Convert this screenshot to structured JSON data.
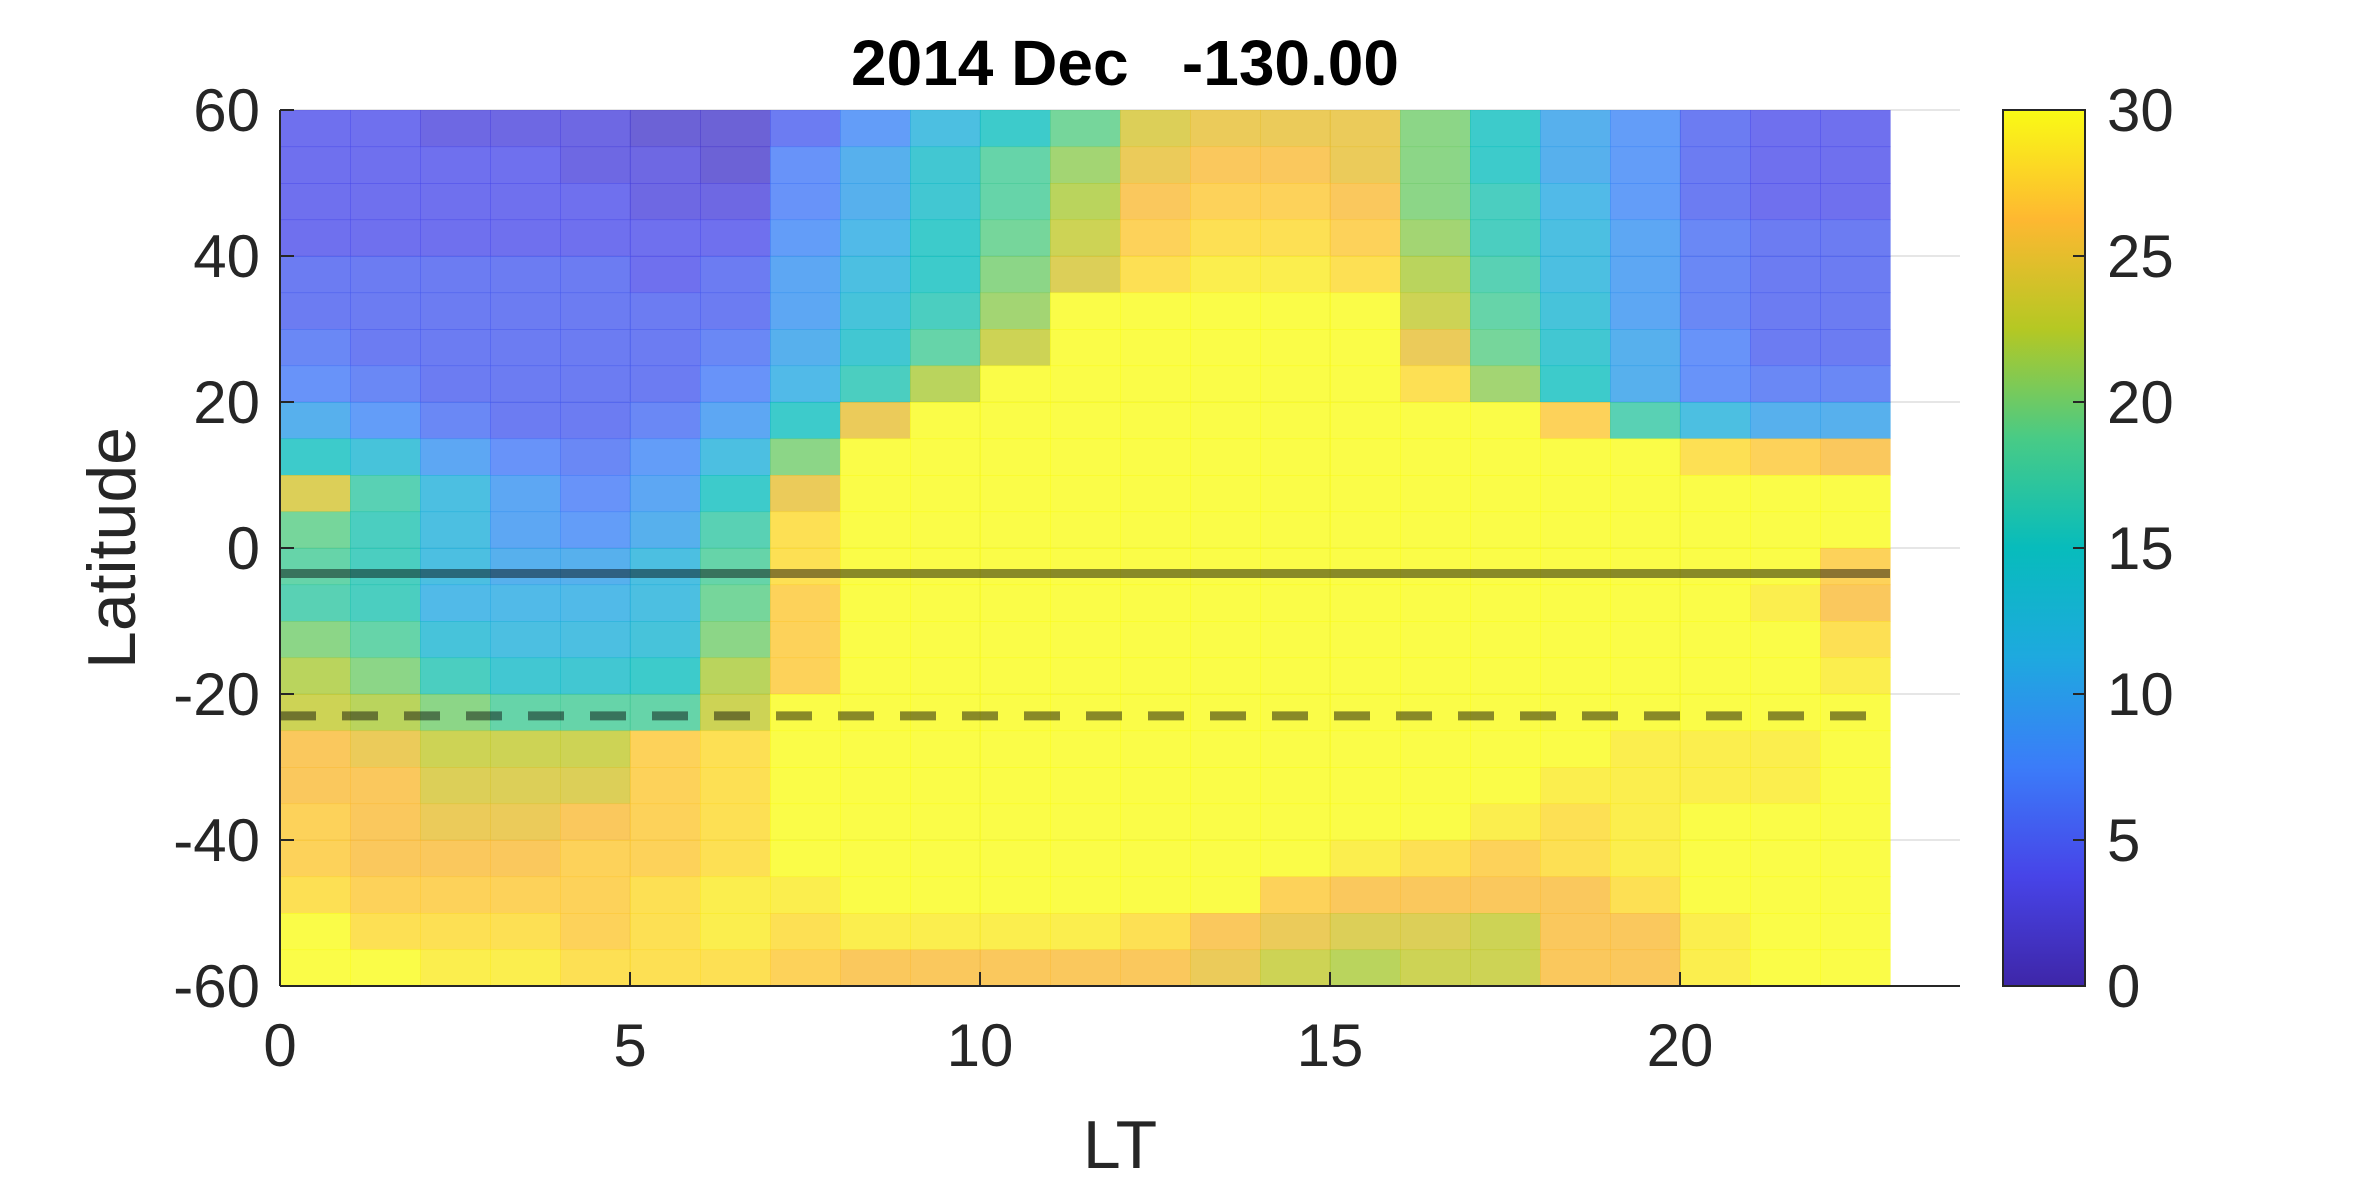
{
  "chart_data": {
    "type": "heatmap",
    "title": "2014 Dec   -130.00",
    "xlabel": "LT",
    "ylabel": "Latitude",
    "xlim": [
      0,
      24
    ],
    "ylim": [
      -60,
      60
    ],
    "x_ticks": [
      0,
      5,
      10,
      15,
      20
    ],
    "x_tick_labels": [
      "0",
      "5",
      "10",
      "15",
      "20"
    ],
    "y_ticks": [
      -60,
      -40,
      -20,
      0,
      20,
      40,
      60
    ],
    "y_tick_labels": [
      "-60",
      "-40",
      "-20",
      "0",
      "20",
      "40",
      "60"
    ],
    "grid": true,
    "colormap": "parula",
    "clim": [
      0,
      30
    ],
    "colorbar_ticks": [
      0,
      5,
      10,
      15,
      20,
      25,
      30
    ],
    "colorbar_tick_labels": [
      "0",
      "5",
      "10",
      "15",
      "20",
      "25",
      "30"
    ],
    "x_bin_width": 1,
    "y_bin_height": 5,
    "y_bins_top_edge": 60,
    "row_centers": [
      57.5,
      52.5,
      47.5,
      42.5,
      37.5,
      32.5,
      27.5,
      22.5,
      17.5,
      12.5,
      7.5,
      2.5,
      -2.5,
      -7.5,
      -12.5,
      -17.5,
      -22.5,
      -27.5,
      -32.5,
      -37.5,
      -42.5,
      -47.5,
      -52.5,
      -57.5
    ],
    "col_centers": [
      0.5,
      1.5,
      2.5,
      3.5,
      4.5,
      5.5,
      6.5,
      7.5,
      8.5,
      9.5,
      10.5,
      11.5,
      12.5,
      13.5,
      14.5,
      15.5,
      16.5,
      17.5,
      18.5,
      19.5,
      20.5,
      21.5,
      22.5
    ],
    "values": [
      [
        4,
        4,
        3,
        3,
        3,
        2,
        2,
        5,
        8,
        12,
        15,
        19,
        24,
        25,
        25,
        25,
        20,
        15,
        10,
        8,
        5,
        4,
        4
      ],
      [
        4,
        4,
        4,
        4,
        3,
        3,
        2,
        7,
        10,
        14,
        18,
        21,
        25,
        26,
        26,
        25,
        20,
        15,
        10,
        8,
        5,
        4,
        4
      ],
      [
        4,
        4,
        4,
        4,
        4,
        3,
        3,
        7,
        10,
        14,
        18,
        22,
        26,
        27,
        27,
        26,
        20,
        16,
        11,
        8,
        5,
        4,
        4
      ],
      [
        4,
        4,
        4,
        4,
        4,
        4,
        4,
        8,
        11,
        15,
        19,
        23,
        27,
        28,
        28,
        27,
        21,
        16,
        12,
        9,
        6,
        5,
        5
      ],
      [
        5,
        5,
        5,
        5,
        5,
        4,
        5,
        9,
        12,
        15,
        20,
        24,
        28,
        29,
        29,
        28,
        22,
        17,
        12,
        9,
        6,
        5,
        5
      ],
      [
        5,
        5,
        5,
        5,
        5,
        5,
        5,
        9,
        13,
        16,
        21,
        30,
        30,
        30,
        30,
        30,
        23,
        18,
        13,
        9,
        6,
        5,
        5
      ],
      [
        6,
        5,
        5,
        5,
        5,
        5,
        6,
        10,
        14,
        18,
        23,
        30,
        30,
        30,
        30,
        30,
        25,
        19,
        14,
        10,
        7,
        5,
        5
      ],
      [
        7,
        6,
        5,
        5,
        5,
        5,
        7,
        11,
        16,
        22,
        30,
        30,
        30,
        30,
        30,
        30,
        28,
        21,
        15,
        10,
        7,
        6,
        6
      ],
      [
        10,
        8,
        6,
        5,
        5,
        6,
        9,
        15,
        25,
        30,
        30,
        30,
        30,
        30,
        30,
        30,
        30,
        30,
        27,
        17,
        12,
        10,
        10
      ],
      [
        15,
        13,
        9,
        7,
        6,
        8,
        12,
        20,
        30,
        30,
        30,
        30,
        30,
        30,
        30,
        30,
        30,
        30,
        30,
        30,
        28,
        27,
        26
      ],
      [
        24,
        17,
        12,
        9,
        7,
        9,
        15,
        25,
        30,
        30,
        30,
        30,
        30,
        30,
        30,
        30,
        30,
        30,
        30,
        30,
        30,
        30,
        30
      ],
      [
        19,
        16,
        12,
        9,
        8,
        10,
        17,
        28,
        30,
        30,
        30,
        30,
        30,
        30,
        30,
        30,
        30,
        30,
        30,
        30,
        30,
        30,
        30
      ],
      [
        18,
        16,
        12,
        10,
        10,
        12,
        18,
        28,
        30,
        30,
        30,
        30,
        30,
        30,
        30,
        30,
        30,
        30,
        30,
        30,
        30,
        30,
        27
      ],
      [
        17,
        16,
        11,
        11,
        11,
        12,
        19,
        27,
        30,
        30,
        30,
        30,
        30,
        30,
        30,
        30,
        30,
        30,
        30,
        30,
        30,
        29,
        26
      ],
      [
        20,
        18,
        13,
        12,
        12,
        13,
        20,
        27,
        30,
        30,
        30,
        30,
        30,
        30,
        30,
        30,
        30,
        30,
        30,
        30,
        30,
        30,
        28
      ],
      [
        22,
        20,
        16,
        14,
        14,
        15,
        22,
        27,
        30,
        30,
        30,
        30,
        30,
        30,
        30,
        30,
        30,
        30,
        30,
        30,
        30,
        30,
        29
      ],
      [
        23,
        22,
        20,
        18,
        18,
        18,
        23,
        30,
        30,
        30,
        30,
        30,
        30,
        30,
        30,
        30,
        30,
        30,
        30,
        30,
        30,
        30,
        30
      ],
      [
        26,
        25,
        23,
        23,
        23,
        27,
        28,
        30,
        30,
        30,
        30,
        30,
        30,
        30,
        30,
        30,
        30,
        30,
        30,
        29,
        29,
        29,
        30
      ],
      [
        26,
        26,
        24,
        24,
        24,
        27,
        28,
        30,
        30,
        30,
        30,
        30,
        30,
        30,
        30,
        30,
        30,
        30,
        29,
        29,
        29,
        29,
        30
      ],
      [
        27,
        26,
        25,
        25,
        26,
        27,
        28,
        30,
        30,
        30,
        30,
        30,
        30,
        30,
        30,
        30,
        30,
        29,
        28,
        29,
        30,
        30,
        30
      ],
      [
        27,
        26,
        26,
        26,
        27,
        27,
        28,
        30,
        30,
        30,
        30,
        30,
        30,
        30,
        30,
        29,
        28,
        27,
        28,
        29,
        30,
        30,
        30
      ],
      [
        28,
        27,
        27,
        27,
        27,
        28,
        29,
        29,
        30,
        30,
        30,
        30,
        30,
        30,
        27,
        26,
        26,
        26,
        26,
        28,
        30,
        30,
        30
      ],
      [
        30,
        28,
        28,
        28,
        27,
        28,
        29,
        28,
        29,
        29,
        29,
        29,
        28,
        26,
        25,
        24,
        24,
        23,
        26,
        26,
        29,
        30,
        30
      ],
      [
        30,
        30,
        29,
        29,
        28,
        28,
        28,
        27,
        26,
        26,
        26,
        26,
        26,
        25,
        23,
        22,
        23,
        23,
        26,
        26,
        29,
        30,
        30
      ]
    ],
    "reference_lines": [
      {
        "style": "solid",
        "y": -3.5
      },
      {
        "style": "dashed",
        "y": -23
      }
    ]
  }
}
